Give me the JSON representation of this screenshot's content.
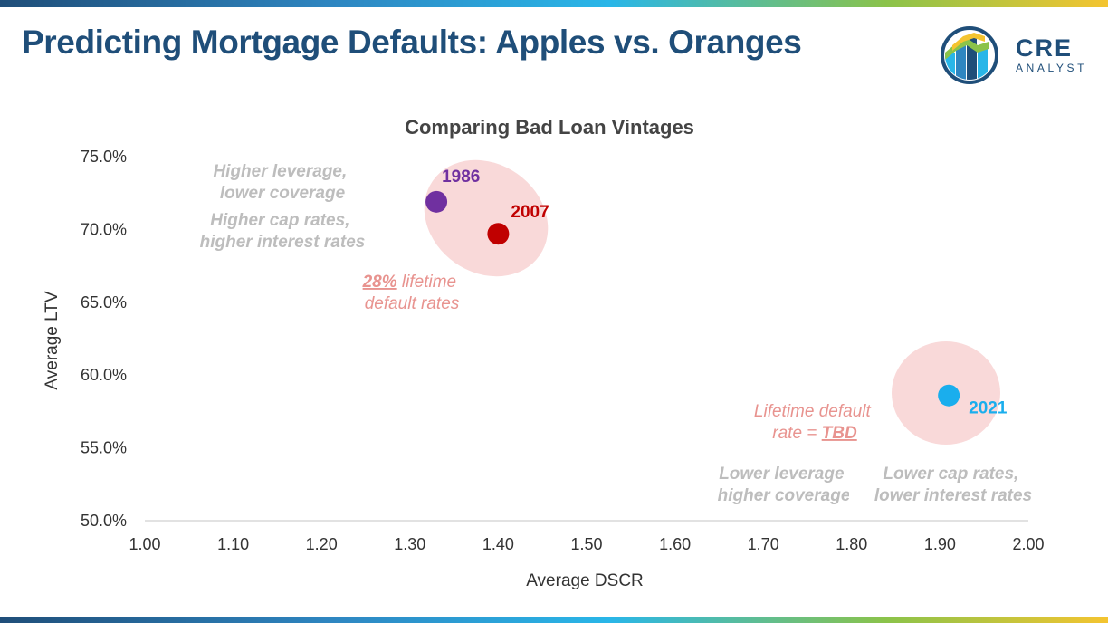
{
  "page": {
    "title": "Predicting Mortgage Defaults: Apples vs. Oranges",
    "logo": {
      "word": "CRE",
      "sub": "ANALYST"
    }
  },
  "colors": {
    "title": "#1f4e79",
    "point_1986": "#7030a0",
    "point_2007": "#c00000",
    "point_2021": "#1aaeed",
    "bubble": "#f9d9d9",
    "gray_annotation": "#bdbdbd",
    "red_annotation": "#e8938f"
  },
  "chart_data": {
    "type": "scatter",
    "title": "Comparing Bad Loan Vintages",
    "xlabel": "Average DSCR",
    "ylabel": "Average LTV",
    "xlim": [
      1.0,
      2.0
    ],
    "ylim": [
      0.5,
      0.75
    ],
    "x_ticks": [
      "1.00",
      "1.10",
      "1.20",
      "1.30",
      "1.40",
      "1.50",
      "1.60",
      "1.70",
      "1.80",
      "1.90",
      "2.00"
    ],
    "y_ticks": [
      "50.0%",
      "55.0%",
      "60.0%",
      "65.0%",
      "70.0%",
      "75.0%"
    ],
    "grid": false,
    "points": [
      {
        "label": "1986",
        "x": 1.33,
        "y": 0.719
      },
      {
        "label": "2007",
        "x": 1.4,
        "y": 0.697
      },
      {
        "label": "2021",
        "x": 1.91,
        "y": 0.586
      }
    ],
    "annotations": {
      "left_gray_1": [
        "Higher leverage,",
        "lower coverage"
      ],
      "left_gray_2": [
        "Higher cap rates,",
        "higher interest rates"
      ],
      "left_red": {
        "emph": "28%",
        "line1_rest": " lifetime",
        "line2": "default rates"
      },
      "right_red": {
        "line1": "Lifetime default",
        "line2_pre": "rate = ",
        "emph": "TBD"
      },
      "right_gray_1": [
        "Lower leverage",
        "higher coverage"
      ],
      "right_gray_2": [
        "Lower cap rates,",
        "lower interest rates"
      ]
    }
  }
}
